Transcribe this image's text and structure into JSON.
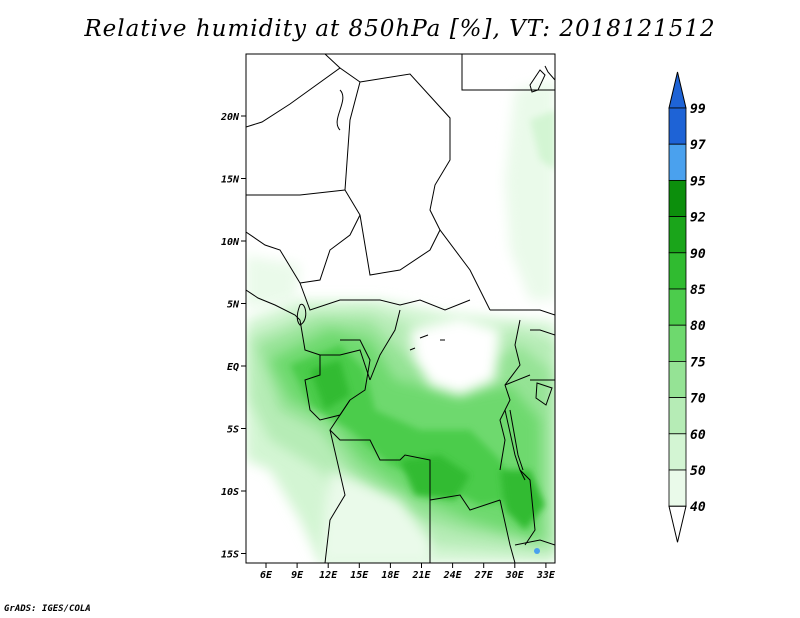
{
  "title": "Relative humidity at 850hPa [%], VT: 2018121512",
  "footer": "GrADS: IGES/COLA",
  "map": {
    "lat_labels": [
      "20N",
      "15N",
      "10N",
      "5N",
      "EQ",
      "5S",
      "10S",
      "15S"
    ],
    "lon_labels": [
      "6E",
      "9E",
      "12E",
      "15E",
      "18E",
      "21E",
      "24E",
      "27E",
      "30E",
      "33E"
    ],
    "lon_range": [
      3.5,
      33.5
    ],
    "lat_range": [
      -15.5,
      25
    ]
  },
  "colorbar": {
    "levels": [
      "99",
      "97",
      "95",
      "92",
      "90",
      "85",
      "80",
      "75",
      "70",
      "60",
      "50",
      "40"
    ],
    "colors": [
      "#1e63d6",
      "#1e63d6",
      "#4aa1ee",
      "#0c8f0c",
      "#1aa51a",
      "#30bb30",
      "#4ccc4c",
      "#6ed96e",
      "#95e395",
      "#b6ecb6",
      "#d3f5d3",
      "#eafaea",
      "#ffffff",
      "#ffffff"
    ]
  }
}
